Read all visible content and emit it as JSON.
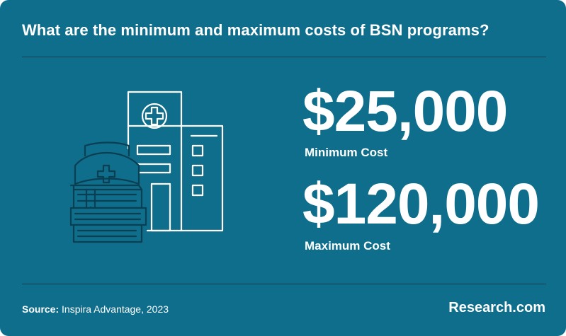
{
  "title": "What are the minimum and maximum costs of BSN programs?",
  "stats": [
    {
      "value": "$25,000",
      "label": "Minimum Cost"
    },
    {
      "value": "$120,000",
      "label": "Maximum Cost"
    }
  ],
  "source": {
    "label": "Source:",
    "text": "Inspira Advantage, 2023"
  },
  "brand": "Research.com",
  "illustration_icon": "hospital-nurse-cap-books-icon",
  "colors": {
    "background": "#0f6e8c",
    "text": "#ffffff",
    "line": "#0a3f52"
  }
}
